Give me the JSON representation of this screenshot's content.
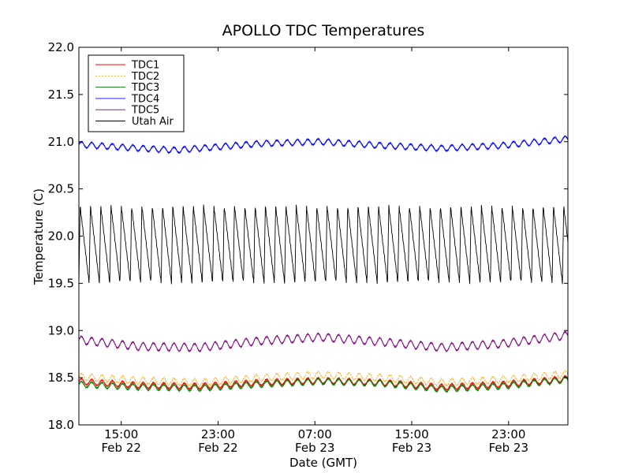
{
  "chart_data": {
    "type": "line",
    "title": "APOLLO TDC Temperatures",
    "xlabel": "Date (GMT)",
    "ylabel": "Temperature (C)",
    "ylim": [
      18.0,
      22.0
    ],
    "xlim_hours": [
      0,
      40.4
    ],
    "x_unit": "hours since Feb 22 11:30 GMT",
    "yticks": [
      {
        "value": 18.0,
        "label": "18.0"
      },
      {
        "value": 18.5,
        "label": "18.5"
      },
      {
        "value": 19.0,
        "label": "19.0"
      },
      {
        "value": 19.5,
        "label": "19.5"
      },
      {
        "value": 20.0,
        "label": "20.0"
      },
      {
        "value": 20.5,
        "label": "20.5"
      },
      {
        "value": 21.0,
        "label": "21.0"
      },
      {
        "value": 21.5,
        "label": "21.5"
      },
      {
        "value": 22.0,
        "label": "22.0"
      }
    ],
    "xticks": [
      {
        "hour": 3.5,
        "time": "15:00",
        "date": "Feb 22"
      },
      {
        "hour": 11.5,
        "time": "23:00",
        "date": "Feb 22"
      },
      {
        "hour": 19.5,
        "time": "07:00",
        "date": "Feb 23"
      },
      {
        "hour": 27.5,
        "time": "15:00",
        "date": "Feb 23"
      },
      {
        "hour": 35.5,
        "time": "23:00",
        "date": "Feb 23"
      }
    ],
    "legend_position": "top-left",
    "series": [
      {
        "name": "TDC1",
        "color": "#ff0000",
        "dash": "none",
        "cycle_period_hours": 0.85,
        "cycle_amplitude": 0.03,
        "baseline": [
          [
            0,
            18.46
          ],
          [
            5,
            18.42
          ],
          [
            10,
            18.41
          ],
          [
            15,
            18.45
          ],
          [
            20,
            18.47
          ],
          [
            25,
            18.45
          ],
          [
            30,
            18.4
          ],
          [
            35,
            18.43
          ],
          [
            40.4,
            18.49
          ]
        ]
      },
      {
        "name": "TDC2",
        "color": "#ffa500",
        "dash": "2,2",
        "cycle_period_hours": 0.85,
        "cycle_amplitude": 0.035,
        "baseline": [
          [
            0,
            18.51
          ],
          [
            5,
            18.47
          ],
          [
            10,
            18.45
          ],
          [
            15,
            18.5
          ],
          [
            20,
            18.53
          ],
          [
            25,
            18.5
          ],
          [
            30,
            18.45
          ],
          [
            35,
            18.48
          ],
          [
            40.4,
            18.54
          ]
        ]
      },
      {
        "name": "TDC3",
        "color": "#008000",
        "dash": "none",
        "cycle_period_hours": 0.85,
        "cycle_amplitude": 0.03,
        "baseline": [
          [
            0,
            18.43
          ],
          [
            5,
            18.4
          ],
          [
            10,
            18.39
          ],
          [
            15,
            18.43
          ],
          [
            20,
            18.46
          ],
          [
            25,
            18.44
          ],
          [
            30,
            18.38
          ],
          [
            35,
            18.41
          ],
          [
            40.4,
            18.48
          ]
        ]
      },
      {
        "name": "TDC4",
        "color": "#0000ff",
        "dash": "none",
        "cycle_period_hours": 0.85,
        "cycle_amplitude": 0.03,
        "baseline": [
          [
            0,
            20.97
          ],
          [
            5,
            20.93
          ],
          [
            8,
            20.91
          ],
          [
            15,
            20.98
          ],
          [
            20,
            21.0
          ],
          [
            25,
            20.96
          ],
          [
            30,
            20.93
          ],
          [
            35,
            20.96
          ],
          [
            40.4,
            21.03
          ]
        ]
      },
      {
        "name": "TDC5",
        "color": "#800080",
        "dash": "none",
        "cycle_period_hours": 0.85,
        "cycle_amplitude": 0.04,
        "baseline": [
          [
            0,
            18.9
          ],
          [
            5,
            18.83
          ],
          [
            10,
            18.82
          ],
          [
            15,
            18.89
          ],
          [
            20,
            18.93
          ],
          [
            25,
            18.88
          ],
          [
            30,
            18.82
          ],
          [
            35,
            18.86
          ],
          [
            40.4,
            18.95
          ]
        ]
      },
      {
        "name": "Utah Air",
        "color": "#000000",
        "dash": "none",
        "cycle_period_hours": 0.85,
        "cycle_min": 19.5,
        "cycle_max": 20.32,
        "baseline": [
          [
            0,
            19.9
          ],
          [
            40.4,
            19.9
          ]
        ]
      }
    ]
  }
}
